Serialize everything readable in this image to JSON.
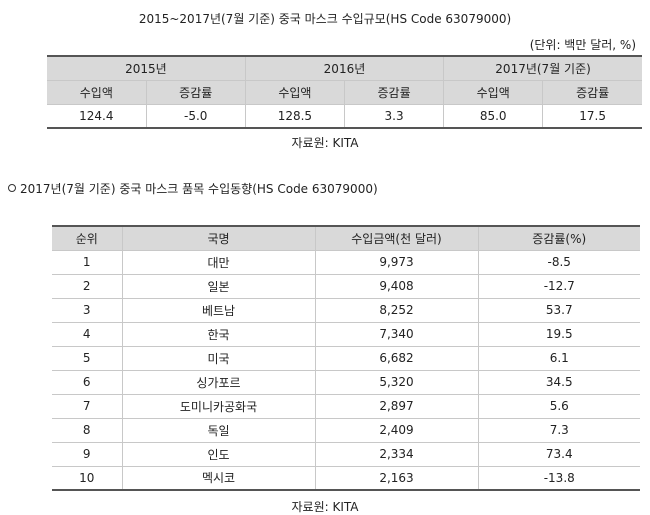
{
  "title": "2015~2017년(7월 기준) 중국 마스크 수입규모(HS Code 63079000)",
  "unit": "(단위: 백만 달러, %)",
  "table1": {
    "years": [
      "2015년",
      "2016년",
      "2017년(7월 기준)"
    ],
    "subheaders": [
      "수입액",
      "증감률",
      "수입액",
      "증감률",
      "수입액",
      "증감률"
    ],
    "row": [
      "124.4",
      "-5.0",
      "128.5",
      "3.3",
      "85.0",
      "17.5"
    ]
  },
  "source1": "자료원: KITA",
  "section_title": "2017년(7월 기준) 중국 마스크 품목 수입동향(HS Code 63079000)",
  "table2": {
    "headers": [
      "순위",
      "국명",
      "수입금액(천 달러)",
      "증감률(%)"
    ],
    "rows": [
      [
        "1",
        "대만",
        "9,973",
        "-8.5"
      ],
      [
        "2",
        "일본",
        "9,408",
        "-12.7"
      ],
      [
        "3",
        "베트남",
        "8,252",
        "53.7"
      ],
      [
        "4",
        "한국",
        "7,340",
        "19.5"
      ],
      [
        "5",
        "미국",
        "6,682",
        "6.1"
      ],
      [
        "6",
        "싱가포르",
        "5,320",
        "34.5"
      ],
      [
        "7",
        "도미니카공화국",
        "2,897",
        "5.6"
      ],
      [
        "8",
        "독일",
        "2,409",
        "7.3"
      ],
      [
        "9",
        "인도",
        "2,334",
        "73.4"
      ],
      [
        "10",
        "멕시코",
        "2,163",
        "-13.8"
      ]
    ]
  },
  "source2": "자료원: KITA"
}
